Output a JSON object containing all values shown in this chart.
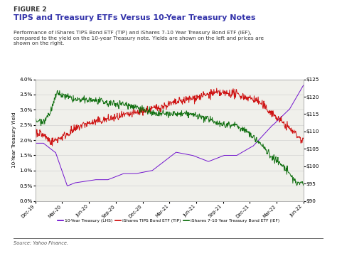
{
  "figure_label": "FIGURE 2",
  "title": "TIPS and Treasury ETFs Versus 10-Year Treasury Notes",
  "subtitle": "Performance of iShares TIPS Bond ETF (TIP) and iShares 7-10 Year Treasury Bond ETF (IEF),\ncompared to the yield on the 10-year Treasury note. Yields are shown on the left and prices are\nshown on the right.",
  "source": "Source: Yahoo Finance.",
  "ylabel_left": "10-Year Treasury Yield",
  "ylim_left": [
    0.0,
    0.04
  ],
  "ylim_right": [
    90,
    125
  ],
  "yticks_left": [
    0.0,
    0.005,
    0.01,
    0.015,
    0.02,
    0.025,
    0.03,
    0.035,
    0.04
  ],
  "yticks_right": [
    90,
    95,
    100,
    105,
    110,
    115,
    120,
    125
  ],
  "xtick_labels": [
    "Dec-19",
    "Mar-20",
    "Jun-20",
    "Sep-20",
    "Dec-20",
    "Mar-21",
    "Jun-21",
    "Sep-21",
    "Dec-21",
    "Mar-22",
    "Jun-22"
  ],
  "legend_entries": [
    "10-Year Treasury (LHS)",
    "iShares TIPS Bond ETF (TIP)",
    "iShares 7-10 Year Treasury Bond ETF (IEF)"
  ],
  "colors": {
    "treasury": "#6600cc",
    "tip": "#cc0000",
    "ief": "#006600"
  },
  "plot_bg": "#f0f0eb",
  "title_color": "#3333aa",
  "figure_label_color": "#333333",
  "subtitle_color": "#333333",
  "source_color": "#555555"
}
